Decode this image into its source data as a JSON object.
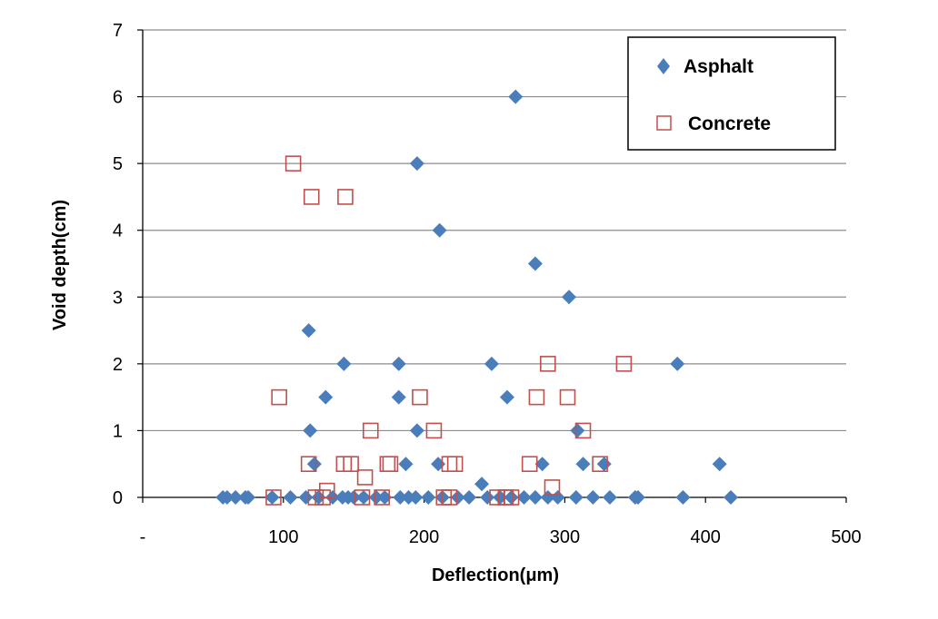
{
  "chart_data": {
    "type": "scatter",
    "xlabel": "Deflection(μm)",
    "ylabel": "Void depth(cm)",
    "xlim": [
      0,
      500
    ],
    "ylim": [
      0,
      7
    ],
    "x_ticks": [
      0,
      100,
      200,
      300,
      400,
      500
    ],
    "x_tick_labels": [
      "-",
      "100",
      "200",
      "300",
      "400",
      "500"
    ],
    "y_ticks": [
      0,
      1,
      2,
      3,
      4,
      5,
      6,
      7
    ],
    "y_tick_labels": [
      "0",
      "1",
      "2",
      "3",
      "4",
      "5",
      "6",
      "7"
    ],
    "grid": "horizontal",
    "legend_position": "top-right",
    "series": [
      {
        "name": "Asphalt",
        "marker": "diamond",
        "color": "#4a7ebb",
        "points": [
          [
            265,
            6
          ],
          [
            195,
            5
          ],
          [
            211,
            4
          ],
          [
            279,
            3.5
          ],
          [
            303,
            3
          ],
          [
            118,
            2.5
          ],
          [
            143,
            2
          ],
          [
            182,
            2
          ],
          [
            248,
            2
          ],
          [
            380,
            2
          ],
          [
            130,
            1.5
          ],
          [
            182,
            1.5
          ],
          [
            259,
            1.5
          ],
          [
            119,
            1
          ],
          [
            195,
            1
          ],
          [
            309,
            1
          ],
          [
            122,
            0.5
          ],
          [
            187,
            0.5
          ],
          [
            210,
            0.5
          ],
          [
            284,
            0.5
          ],
          [
            313,
            0.5
          ],
          [
            328,
            0.5
          ],
          [
            410,
            0.5
          ],
          [
            241,
            0.2
          ],
          [
            57,
            0
          ],
          [
            60,
            0
          ],
          [
            66,
            0
          ],
          [
            73,
            0
          ],
          [
            75,
            0
          ],
          [
            92,
            0
          ],
          [
            105,
            0
          ],
          [
            116,
            0
          ],
          [
            125,
            0
          ],
          [
            135,
            0
          ],
          [
            142,
            0
          ],
          [
            146,
            0
          ],
          [
            150,
            0
          ],
          [
            157,
            0
          ],
          [
            166,
            0
          ],
          [
            172,
            0
          ],
          [
            183,
            0
          ],
          [
            189,
            0
          ],
          [
            194,
            0
          ],
          [
            203,
            0
          ],
          [
            213,
            0
          ],
          [
            224,
            0
          ],
          [
            232,
            0
          ],
          [
            245,
            0
          ],
          [
            254,
            0
          ],
          [
            262,
            0
          ],
          [
            271,
            0
          ],
          [
            279,
            0
          ],
          [
            288,
            0
          ],
          [
            295,
            0
          ],
          [
            308,
            0
          ],
          [
            320,
            0
          ],
          [
            332,
            0
          ],
          [
            350,
            0
          ],
          [
            352,
            0
          ],
          [
            384,
            0
          ],
          [
            418,
            0
          ]
        ]
      },
      {
        "name": "Concrete",
        "marker": "square",
        "color": "#c0504d",
        "points": [
          [
            107,
            5
          ],
          [
            120,
            4.5
          ],
          [
            144,
            4.5
          ],
          [
            288,
            2
          ],
          [
            342,
            2
          ],
          [
            97,
            1.5
          ],
          [
            197,
            1.5
          ],
          [
            280,
            1.5
          ],
          [
            302,
            1.5
          ],
          [
            162,
            1
          ],
          [
            207,
            1
          ],
          [
            313,
            1
          ],
          [
            118,
            0.5
          ],
          [
            143,
            0.5
          ],
          [
            148,
            0.5
          ],
          [
            174,
            0.5
          ],
          [
            176,
            0.5
          ],
          [
            218,
            0.5
          ],
          [
            222,
            0.5
          ],
          [
            275,
            0.5
          ],
          [
            325,
            0.5
          ],
          [
            158,
            0.3
          ],
          [
            291,
            0.15
          ],
          [
            131,
            0.1
          ],
          [
            93,
            0
          ],
          [
            123,
            0
          ],
          [
            128,
            0
          ],
          [
            156,
            0
          ],
          [
            170,
            0
          ],
          [
            214,
            0
          ],
          [
            218,
            0
          ],
          [
            252,
            0
          ],
          [
            258,
            0
          ],
          [
            262,
            0
          ]
        ]
      }
    ]
  }
}
